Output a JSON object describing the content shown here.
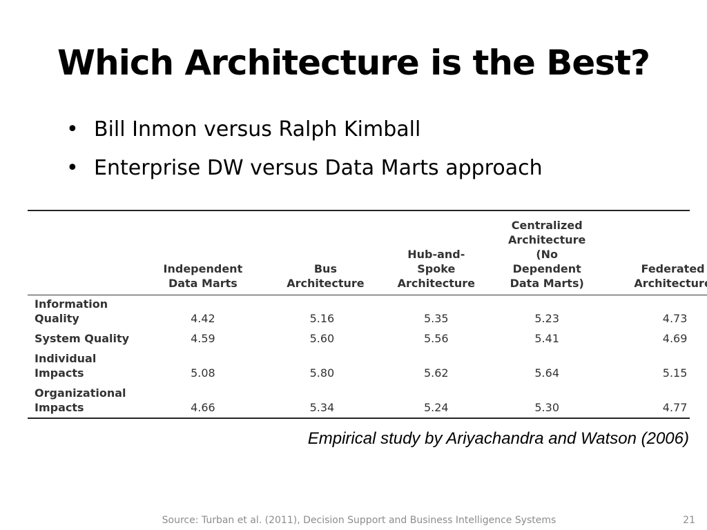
{
  "slide": {
    "title": "Which Architecture is the Best?",
    "bullets": [
      "Bill Inmon versus Ralph Kimball",
      "Enterprise DW versus Data Marts approach"
    ],
    "table": {
      "columns": [
        "",
        "Independent Data Marts",
        "Bus Architecture",
        "Hub-and-Spoke Architecture",
        "Centralized Architecture (No Dependent Data Marts)",
        "Federated Architecture"
      ],
      "rows": [
        {
          "label": "Information Quality",
          "values": [
            "4.42",
            "5.16",
            "5.35",
            "5.23",
            "4.73"
          ]
        },
        {
          "label": "System Quality",
          "values": [
            "4.59",
            "5.60",
            "5.56",
            "5.41",
            "4.69"
          ]
        },
        {
          "label": "Individual Impacts",
          "values": [
            "5.08",
            "5.80",
            "5.62",
            "5.64",
            "5.15"
          ]
        },
        {
          "label": "Organizational Impacts",
          "values": [
            "4.66",
            "5.34",
            "5.24",
            "5.30",
            "4.77"
          ]
        }
      ]
    },
    "caption": "Empirical study by Ariyachandra and Watson (2006)",
    "source": "Source:  Turban et al. (2011), Decision Support and Business Intelligence Systems",
    "page_number": "21"
  }
}
